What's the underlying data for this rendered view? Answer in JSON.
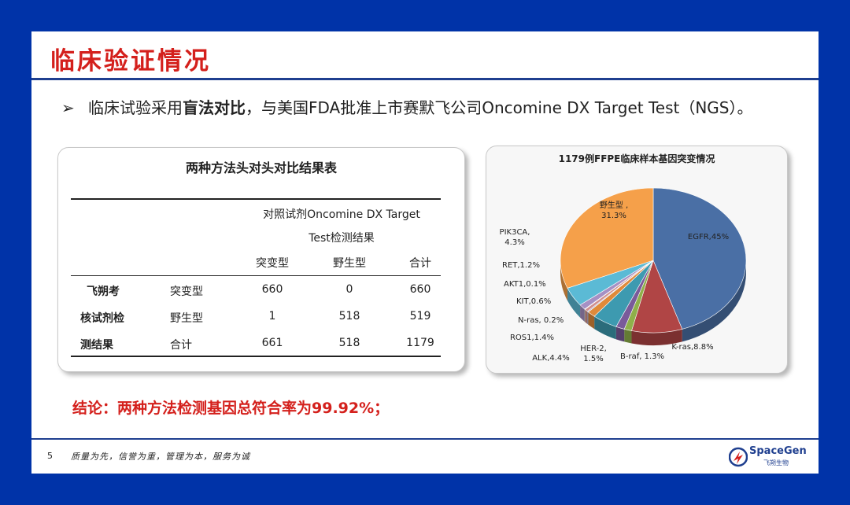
{
  "slide": {
    "title": "临床验证情况",
    "page_number": "5",
    "footer_motto": "质量为先，信誉为重，管理为本，服务为诚"
  },
  "bullet": {
    "marker": "➢",
    "text_before": "临床试验采用",
    "text_bold": "盲法对比",
    "text_after": "，与美国FDA批准上市赛默飞公司Oncomine DX Target Test（NGS）。"
  },
  "table": {
    "title": "两种方法头对头对比结果表",
    "group_header_line1": "对照试剂Oncomine DX Target",
    "group_header_line2": "Test检测结果",
    "col_headers": [
      "突变型",
      "野生型",
      "合计"
    ],
    "row_group_label": [
      "飞朔考",
      "核试剂检",
      "测结果"
    ],
    "rows": [
      {
        "label": "突变型",
        "values": [
          "660",
          "0",
          "660"
        ]
      },
      {
        "label": "野生型",
        "values": [
          "1",
          "518",
          "519"
        ]
      },
      {
        "label": "合计",
        "values": [
          "661",
          "518",
          "1179"
        ]
      }
    ]
  },
  "chart_data": {
    "type": "pie",
    "title": "1179例FFPE临床样本基因突变情况",
    "style": "3d",
    "slices": [
      {
        "label": "EGFR,45%",
        "value": 45,
        "color": "#4a6fa5"
      },
      {
        "label": "K-ras,8.8%",
        "value": 8.8,
        "color": "#b04545"
      },
      {
        "label": "B-raf, 1.3%",
        "value": 1.3,
        "color": "#8fb04a"
      },
      {
        "label": "HER-2, 1.5%",
        "value": 1.5,
        "color": "#7a5a9a"
      },
      {
        "label": "ALK,4.4%",
        "value": 4.4,
        "color": "#3d9ab0"
      },
      {
        "label": "ROS1,1.4%",
        "value": 1.4,
        "color": "#e08a3a"
      },
      {
        "label": "N-ras, 0.2%",
        "value": 0.2,
        "color": "#94a8d0"
      },
      {
        "label": "KIT,0.6%",
        "value": 0.6,
        "color": "#d09090"
      },
      {
        "label": "AKT1,0.1%",
        "value": 0.1,
        "color": "#b8cf88"
      },
      {
        "label": "RET,1.2%",
        "value": 1.2,
        "color": "#a690c4"
      },
      {
        "label": "PIK3CA, 4.3%",
        "value": 4.3,
        "color": "#5bbad5"
      },
      {
        "label": "野生型 ,31.3%",
        "value": 31.3,
        "color": "#f5a04a"
      }
    ]
  },
  "conclusion": {
    "text": "结论：两种方法检测基因总符合率为99.92%；"
  },
  "logo": {
    "name": "SpaceGen",
    "subtitle": "飞朔生物"
  }
}
